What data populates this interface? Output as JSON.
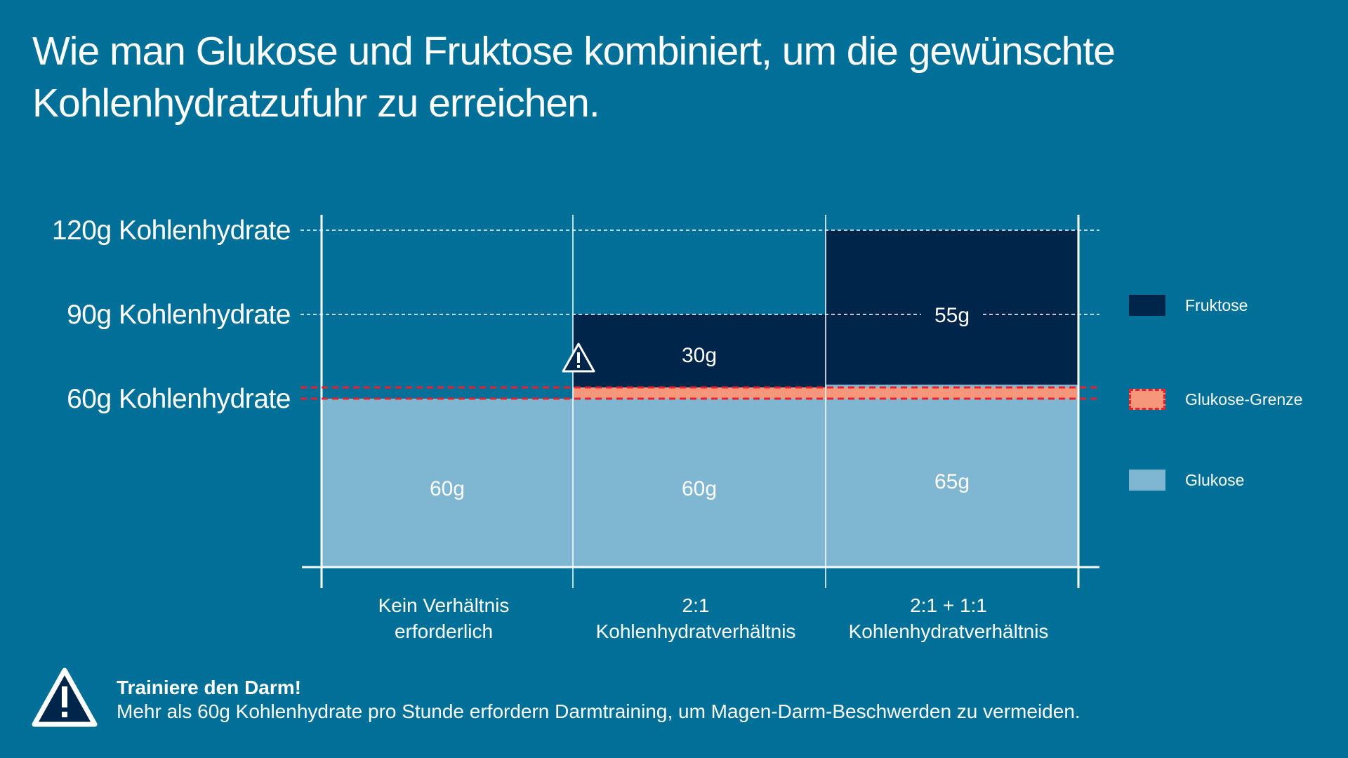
{
  "title": "Wie man Glukose und Fruktose kombiniert, um die gewünschte Kohlenhydratzufuhr zu erreichen.",
  "chart_data": {
    "type": "bar",
    "stacked": true,
    "categories": [
      [
        "Kein Verhältnis",
        "erforderlich"
      ],
      [
        "2:1",
        "Kohlenhydratverhältnis"
      ],
      [
        "2:1 + 1:1",
        "Kohlenhydratverhältnis"
      ]
    ],
    "series": [
      {
        "name": "Glukose",
        "color": "#7fb6d2",
        "values": [
          60,
          60,
          65
        ],
        "labels": [
          "60g",
          "60g",
          "65g"
        ]
      },
      {
        "name": "Fruktose",
        "color": "#00254a",
        "values": [
          0,
          30,
          55
        ],
        "labels": [
          "",
          "30g",
          "55g"
        ]
      }
    ],
    "ylim": [
      0,
      120
    ],
    "reference_lines": [
      {
        "value": 120,
        "label": "120g Kohlenhydrate"
      },
      {
        "value": 90,
        "label": "90g Kohlenhydrate"
      },
      {
        "value": 60,
        "label": "60g Kohlenhydrate"
      }
    ],
    "glucose_limit": {
      "name": "Glukose-Grenze",
      "value": 60,
      "color": "#f4977a",
      "dash_color": "#e8212e"
    },
    "warning_marker_category": 1
  },
  "legend": [
    {
      "label": "Fruktose",
      "kind": "fill",
      "color": "#00254a"
    },
    {
      "label": "Glukose-Grenze",
      "kind": "limit",
      "color": "#f4977a",
      "dash_color": "#e8212e"
    },
    {
      "label": "Glukose",
      "kind": "fill",
      "color": "#7fb6d2"
    }
  ],
  "warning": {
    "icon": "warning-triangle-icon",
    "title": "Trainiere den Darm!",
    "text": "Mehr als 60g Kohlenhydrate pro Stunde erfordern Darmtraining, um Magen-Darm-Beschwerden zu vermeiden."
  },
  "colors": {
    "background": "#007098",
    "text": "#ffffff"
  }
}
